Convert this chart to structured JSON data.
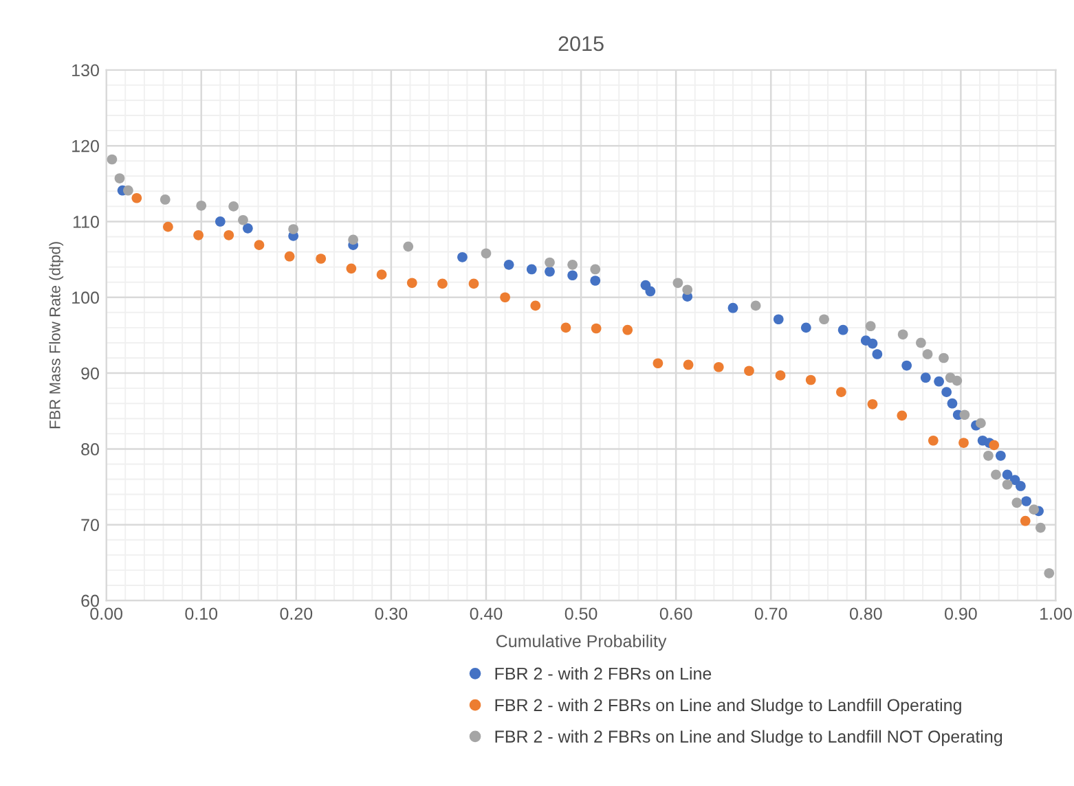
{
  "chart_data": {
    "type": "scatter",
    "title": "2015",
    "xlabel": "Cumulative Probability",
    "ylabel": "FBR Mass Flow Rate (dtpd)",
    "xlim": [
      0,
      1
    ],
    "xticks": [
      {
        "value": 0,
        "label": "0.00"
      },
      {
        "value": 0.1,
        "label": "0.10"
      },
      {
        "value": 0.2,
        "label": "0.20"
      },
      {
        "value": 0.3,
        "label": "0.30"
      },
      {
        "value": 0.4,
        "label": "0.40"
      },
      {
        "value": 0.5,
        "label": "0.50"
      },
      {
        "value": 0.6,
        "label": "0.60"
      },
      {
        "value": 0.7,
        "label": "0.70"
      },
      {
        "value": 0.8,
        "label": "0.80"
      },
      {
        "value": 0.9,
        "label": "0.90"
      },
      {
        "value": 1,
        "label": "1.00"
      }
    ],
    "ylim": [
      60,
      130
    ],
    "yticks": [
      60,
      70,
      80,
      90,
      100,
      110,
      120,
      130
    ],
    "grid": true,
    "legend": "bottom",
    "marker": "circle",
    "series": [
      {
        "name": "FBR 2 - with 2 FBRs on Line",
        "color": "#4472c4",
        "x": [
          0.017,
          0.12,
          0.149,
          0.197,
          0.26,
          0.375,
          0.424,
          0.448,
          0.467,
          0.491,
          0.515,
          0.568,
          0.573,
          0.612,
          0.66,
          0.708,
          0.737,
          0.776,
          0.8,
          0.807,
          0.812,
          0.843,
          0.863,
          0.877,
          0.885,
          0.891,
          0.897,
          0.916,
          0.923,
          0.93,
          0.942,
          0.949,
          0.957,
          0.963,
          0.969,
          0.982
        ],
        "values": [
          114.1,
          110.0,
          109.1,
          108.1,
          106.9,
          105.3,
          104.3,
          103.7,
          103.4,
          102.9,
          102.2,
          101.6,
          100.8,
          100.1,
          98.6,
          97.1,
          96.0,
          95.7,
          94.3,
          93.9,
          92.5,
          91.0,
          89.4,
          88.9,
          87.5,
          86.0,
          84.5,
          83.1,
          81.1,
          80.8,
          79.1,
          76.6,
          75.9,
          75.1,
          73.1,
          71.8
        ]
      },
      {
        "name": "FBR 2 - with 2 FBRs on Line and Sludge to Landfill Operating",
        "color": "#ed7d31",
        "x": [
          0.032,
          0.065,
          0.097,
          0.129,
          0.161,
          0.193,
          0.226,
          0.258,
          0.29,
          0.322,
          0.354,
          0.387,
          0.42,
          0.452,
          0.484,
          0.516,
          0.549,
          0.581,
          0.613,
          0.645,
          0.677,
          0.71,
          0.742,
          0.774,
          0.807,
          0.838,
          0.871,
          0.903,
          0.935,
          0.968
        ],
        "values": [
          113.1,
          109.3,
          108.2,
          108.2,
          106.9,
          105.4,
          105.1,
          103.8,
          103.0,
          101.9,
          101.8,
          101.8,
          100.0,
          98.9,
          96.0,
          95.9,
          95.7,
          91.3,
          91.1,
          90.8,
          90.3,
          89.7,
          89.1,
          87.5,
          85.9,
          84.4,
          81.1,
          80.8,
          80.5,
          70.5
        ]
      },
      {
        "name": "FBR 2 - with 2 FBRs on Line and Sludge to Landfill NOT Operating",
        "color": "#a5a5a5",
        "x": [
          0.006,
          0.014,
          0.023,
          0.062,
          0.1,
          0.134,
          0.144,
          0.197,
          0.26,
          0.318,
          0.4,
          0.467,
          0.491,
          0.515,
          0.602,
          0.612,
          0.684,
          0.756,
          0.805,
          0.839,
          0.858,
          0.865,
          0.882,
          0.889,
          0.896,
          0.904,
          0.921,
          0.929,
          0.937,
          0.949,
          0.959,
          0.977,
          0.984,
          0.993
        ],
        "values": [
          118.2,
          115.7,
          114.1,
          112.9,
          112.1,
          112.0,
          110.2,
          109.0,
          107.6,
          106.7,
          105.8,
          104.6,
          104.3,
          103.7,
          101.9,
          101.0,
          98.9,
          97.1,
          96.2,
          95.1,
          94.0,
          92.5,
          92.0,
          89.4,
          89.0,
          84.5,
          83.4,
          79.1,
          76.6,
          75.3,
          72.9,
          72.0,
          69.6,
          63.6
        ]
      }
    ]
  }
}
